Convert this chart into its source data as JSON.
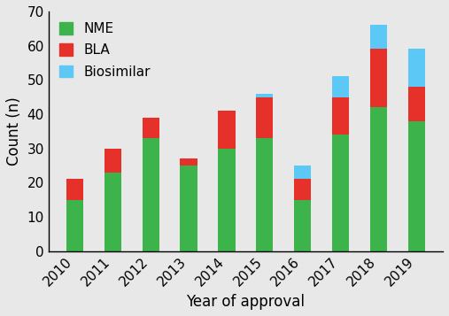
{
  "years": [
    "2010",
    "2011",
    "2012",
    "2013",
    "2014",
    "2015",
    "2016",
    "2017",
    "2018",
    "2019"
  ],
  "NME": [
    15,
    23,
    33,
    25,
    30,
    33,
    15,
    34,
    42,
    38
  ],
  "BLA": [
    6,
    7,
    6,
    2,
    11,
    12,
    6,
    11,
    17,
    10
  ],
  "Biosimilar": [
    0,
    0,
    0,
    0,
    0,
    1,
    4,
    6,
    7,
    11
  ],
  "colors": {
    "NME": "#3db44b",
    "BLA": "#e6302a",
    "Biosimilar": "#5bc8f5"
  },
  "ylabel": "Count (n)",
  "xlabel": "Year of approval",
  "ylim": [
    0,
    70
  ],
  "yticks": [
    0,
    10,
    20,
    30,
    40,
    50,
    60,
    70
  ],
  "background_color": "#e8e8e8",
  "plot_bg_color": "#e8e8e8",
  "bar_width": 0.45,
  "tick_fontsize": 11,
  "label_fontsize": 12,
  "legend_fontsize": 11
}
